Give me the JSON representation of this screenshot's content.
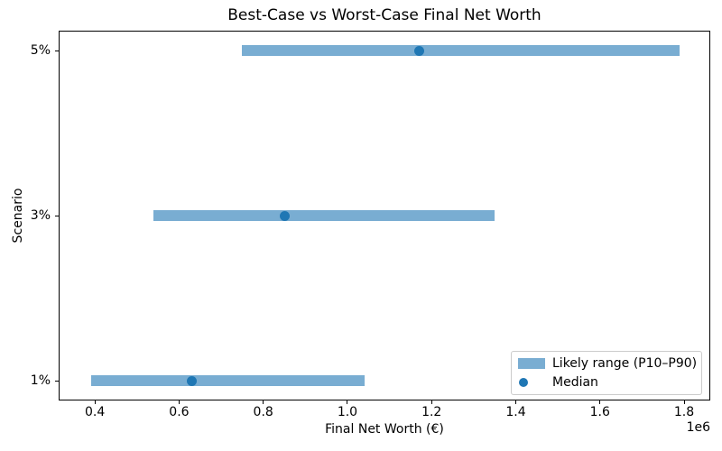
{
  "chart_data": {
    "type": "bar",
    "orientation": "horizontal",
    "title": "Best-Case vs Worst-Case Final Net Worth",
    "xlabel": "Final Net Worth (€)",
    "ylabel": "Scenario",
    "x_axis_multiplier_label": "1e6",
    "categories": [
      "5%",
      "3%",
      "1%"
    ],
    "series": [
      {
        "name": "Likely range (P10–P90)",
        "role": "range_bar",
        "p10_values": [
          750000,
          540000,
          390000
        ],
        "p90_values": [
          1790000,
          1350000,
          1040000
        ]
      },
      {
        "name": "Median",
        "role": "point",
        "values": [
          1170000,
          850000,
          630000
        ]
      }
    ],
    "xlim": [
      316000,
      1860000
    ],
    "xticks": [
      400000,
      600000,
      800000,
      1000000,
      1200000,
      1400000,
      1600000,
      1800000
    ],
    "xtick_labels": [
      "0.4",
      "0.6",
      "0.8",
      "1.0",
      "1.2",
      "1.4",
      "1.6",
      "1.8"
    ],
    "grid": false,
    "legend_position": "lower right",
    "colors": {
      "range_bar": "#79add2",
      "median_dot": "#1f77b4"
    }
  }
}
